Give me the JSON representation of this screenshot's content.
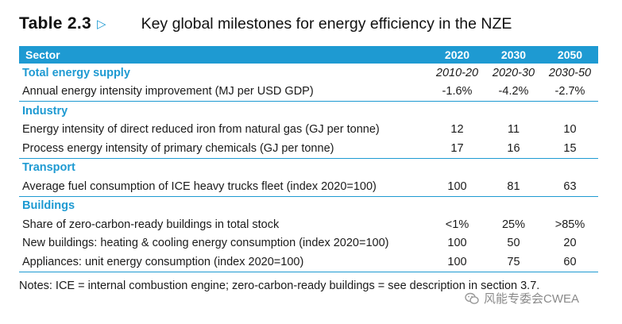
{
  "title": {
    "number": "Table 2.3",
    "arrow": "▷",
    "text": "Key global milestones for energy efficiency in the NZE"
  },
  "header": {
    "sector": "Sector",
    "years": [
      "2020",
      "2030",
      "2050"
    ]
  },
  "sections": [
    {
      "name": "Total energy supply",
      "period_labels": [
        "2010-20",
        "2020-30",
        "2030-50"
      ],
      "rows": [
        {
          "label": "Annual energy intensity improvement (MJ per USD GDP)",
          "values": [
            "-1.6%",
            "-4.2%",
            "-2.7%"
          ]
        }
      ]
    },
    {
      "name": "Industry",
      "rows": [
        {
          "label": "Energy intensity of direct reduced iron from natural gas (GJ per tonne)",
          "values": [
            "12",
            "11",
            "10"
          ]
        },
        {
          "label": "Process energy intensity of primary chemicals (GJ per tonne)",
          "values": [
            "17",
            "16",
            "15"
          ]
        }
      ]
    },
    {
      "name": "Transport",
      "rows": [
        {
          "label": "Average fuel consumption of ICE heavy trucks fleet (index 2020=100)",
          "values": [
            "100",
            "81",
            "63"
          ]
        }
      ]
    },
    {
      "name": "Buildings",
      "rows": [
        {
          "label": "Share of zero-carbon-ready buildings in total stock",
          "values": [
            "<1%",
            "25%",
            ">85%"
          ]
        },
        {
          "label": "New buildings: heating & cooling energy consumption (index 2020=100)",
          "values": [
            "100",
            "50",
            "20"
          ]
        },
        {
          "label": "Appliances: unit energy consumption (index 2020=100)",
          "values": [
            "100",
            "75",
            "60"
          ]
        }
      ]
    }
  ],
  "notes": "Notes: ICE = internal combustion engine; zero-carbon-ready buildings = see description in section 3.7.",
  "watermark": {
    "icon": "wechat-icon",
    "text": "风能专委会CWEA"
  },
  "colors": {
    "accent": "#1e9ad2"
  }
}
